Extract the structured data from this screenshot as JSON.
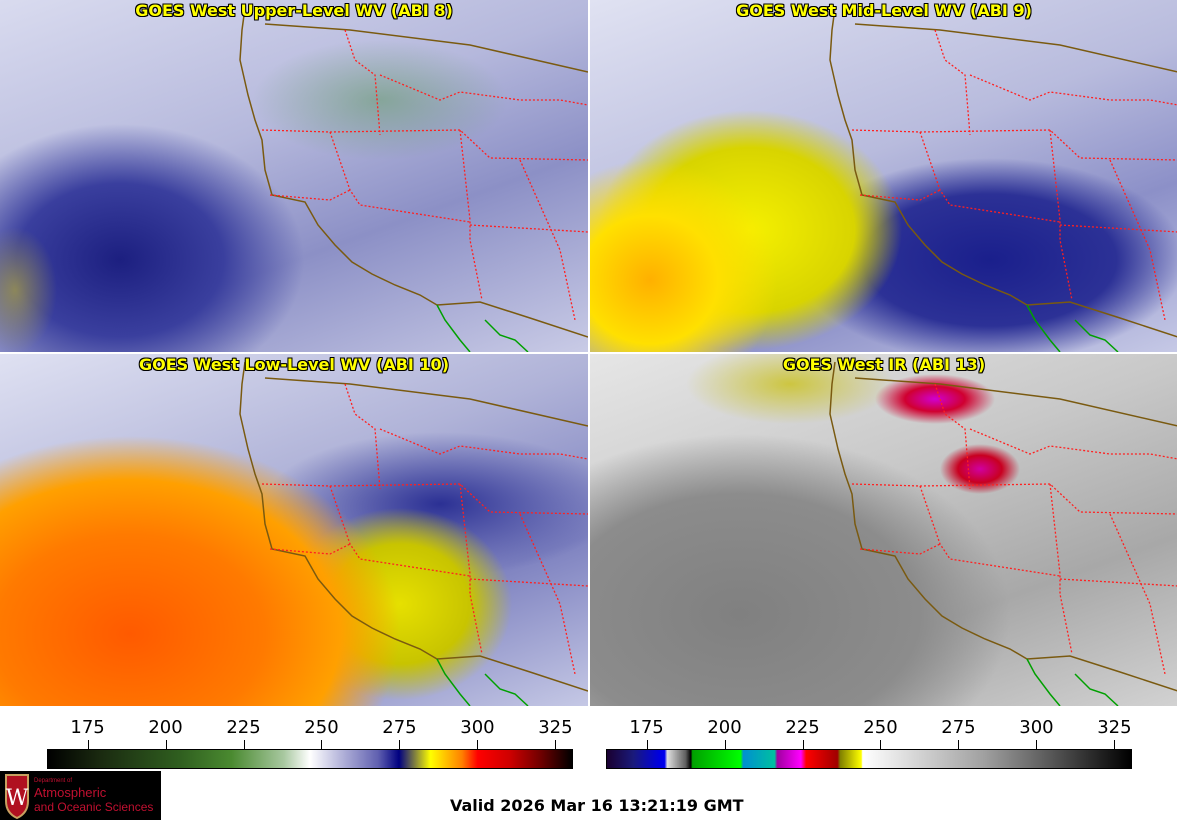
{
  "panels": [
    {
      "title": "GOES West Upper-Level WV (ABI 8)"
    },
    {
      "title": "GOES West Mid-Level WV (ABI 9)"
    },
    {
      "title": "GOES West Low-Level WV (ABI 10)"
    },
    {
      "title": "GOES West IR (ABI 13)"
    }
  ],
  "colorbars": [
    {
      "name": "water-vapor",
      "range": [
        162,
        330
      ],
      "ticks": [
        "175",
        "200",
        "225",
        "250",
        "275",
        "300",
        "325"
      ]
    },
    {
      "name": "infrared",
      "range": [
        162,
        330
      ],
      "ticks": [
        "175",
        "200",
        "225",
        "250",
        "275",
        "300",
        "325"
      ]
    }
  ],
  "logo": {
    "line1": "Department of",
    "line2": "Atmospheric",
    "line3": "and Oceanic Sciences",
    "emblem": "W"
  },
  "valid_time": "Valid 2026 Mar 16 13:21:19 GMT",
  "colors": {
    "title": "#ffff00",
    "coast": "#7a5a10",
    "state_lines": "#ff2020",
    "mexico_coast": "#00a000"
  }
}
